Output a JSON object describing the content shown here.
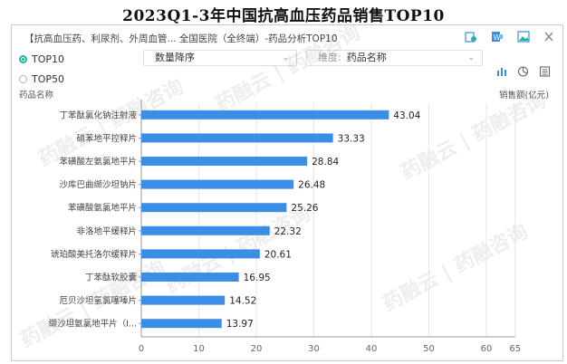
{
  "page_title": "2023Q1-3年中国抗高血压药品销售TOP10",
  "panel": {
    "title": "【抗高血压药、利尿剂、外周血管... 全国医院（全终端）-药品分析TOP10",
    "radio_options": [
      "TOP10",
      "TOP50"
    ],
    "selected_radio": "TOP10",
    "sort_select": "数量降序",
    "dimension_label": "维度:",
    "dimension_value": "药品名称",
    "y_axis_caption": "药品名称",
    "x_axis_caption": "销售额(亿元)",
    "watermark_text": "药融云 | 药融咨询"
  },
  "icons": [
    "export-excel-icon",
    "word-icon",
    "image-icon",
    "close-icon",
    "bar-view-icon",
    "pie-view-icon",
    "table-view-icon"
  ],
  "colors": {
    "bar": "#3a8ee6",
    "accent": "#1fb3a0"
  },
  "chart_data": {
    "type": "bar",
    "orientation": "horizontal",
    "title": "2023Q1-3年中国抗高血压药品销售TOP10",
    "xlabel": "销售额(亿元)",
    "ylabel": "药品名称",
    "categories": [
      "丁苯酞氯化钠注射液",
      "硝苯地平控释片",
      "苯磺酸左氨氯地平片",
      "沙库巴曲缬沙坦钠片",
      "苯磺酸氨氯地平片",
      "非洛地平缓释片",
      "琥珀酸美托洛尔缓释片",
      "丁苯酞软胶囊",
      "厄贝沙坦氢氯噻嗪片",
      "缬沙坦氨氯地平片（Ⅰ..."
    ],
    "values": [
      43.04,
      33.33,
      28.84,
      26.48,
      25.26,
      22.32,
      20.61,
      16.95,
      14.52,
      13.97
    ],
    "x_ticks": [
      0,
      10,
      20,
      30,
      40,
      50,
      60,
      65
    ],
    "xlim": [
      0,
      65
    ],
    "grid": true
  }
}
